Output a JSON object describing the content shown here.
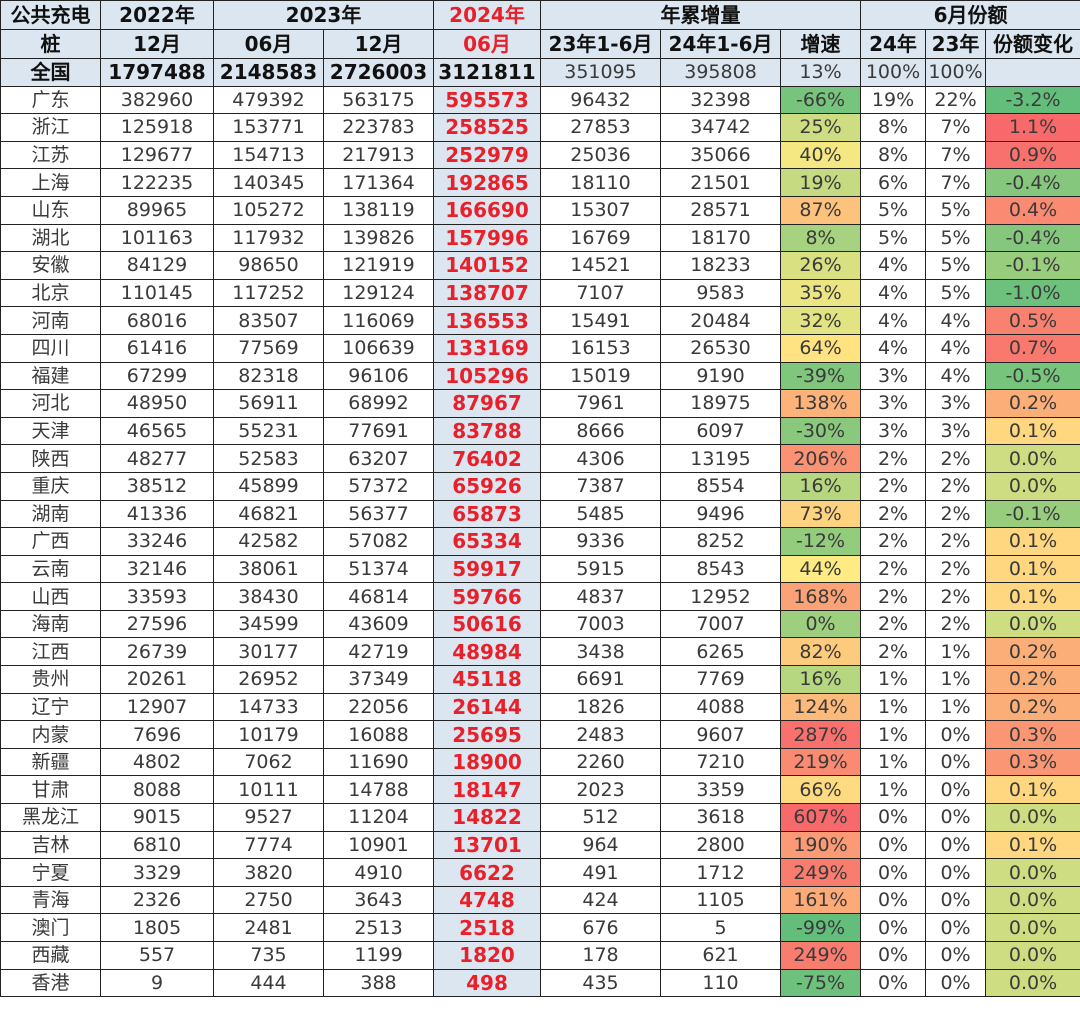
{
  "header": {
    "corner_line1": "公共充电",
    "corner_line2": "桩",
    "y2022": "2022年",
    "y2023": "2023年",
    "y2024": "2024年",
    "cumulative": "年累增量",
    "share": "6月份额",
    "m2022_12": "12月",
    "m2023_06": "06月",
    "m2023_12": "12月",
    "m2024_06": "06月",
    "cum23": "23年1-6月",
    "cum24": "24年1-6月",
    "growth": "增速",
    "share24": "24年",
    "share23": "23年",
    "share_change": "份额变化"
  },
  "national": [
    "全国",
    "1797488",
    "2148583",
    "2726003",
    "3121811",
    "351095",
    "395808",
    "13%",
    "100%",
    "100%",
    ""
  ],
  "colors": {
    "highlight_bg": "#dce6f1",
    "highlight_text": "#e8202a",
    "scale_low": "#63be7b",
    "scale_mid": "#ffeb84",
    "scale_high": "#f8696b"
  },
  "rows": [
    [
      "广东",
      "382960",
      "479392",
      "563175",
      "595573",
      "96432",
      "32398",
      "-66%",
      "19%",
      "22%",
      "-3.2%"
    ],
    [
      "浙江",
      "125918",
      "153771",
      "223783",
      "258525",
      "27853",
      "34742",
      "25%",
      "8%",
      "7%",
      "1.1%"
    ],
    [
      "江苏",
      "129677",
      "154713",
      "217913",
      "252979",
      "25036",
      "35066",
      "40%",
      "8%",
      "7%",
      "0.9%"
    ],
    [
      "上海",
      "122235",
      "140345",
      "171364",
      "192865",
      "18110",
      "21501",
      "19%",
      "6%",
      "7%",
      "-0.4%"
    ],
    [
      "山东",
      "89965",
      "105272",
      "138119",
      "166690",
      "15307",
      "28571",
      "87%",
      "5%",
      "5%",
      "0.4%"
    ],
    [
      "湖北",
      "101163",
      "117932",
      "139826",
      "157996",
      "16769",
      "18170",
      "8%",
      "5%",
      "5%",
      "-0.4%"
    ],
    [
      "安徽",
      "84129",
      "98650",
      "121919",
      "140152",
      "14521",
      "18233",
      "26%",
      "4%",
      "5%",
      "-0.1%"
    ],
    [
      "北京",
      "110145",
      "117252",
      "129124",
      "138707",
      "7107",
      "9583",
      "35%",
      "4%",
      "5%",
      "-1.0%"
    ],
    [
      "河南",
      "68016",
      "83507",
      "116069",
      "136553",
      "15491",
      "20484",
      "32%",
      "4%",
      "4%",
      "0.5%"
    ],
    [
      "四川",
      "61416",
      "77569",
      "106639",
      "133169",
      "16153",
      "26530",
      "64%",
      "4%",
      "4%",
      "0.7%"
    ],
    [
      "福建",
      "67299",
      "82318",
      "96106",
      "105296",
      "15019",
      "9190",
      "-39%",
      "3%",
      "4%",
      "-0.5%"
    ],
    [
      "河北",
      "48950",
      "56911",
      "68992",
      "87967",
      "7961",
      "18975",
      "138%",
      "3%",
      "3%",
      "0.2%"
    ],
    [
      "天津",
      "46565",
      "55231",
      "77691",
      "83788",
      "8666",
      "6097",
      "-30%",
      "3%",
      "3%",
      "0.1%"
    ],
    [
      "陕西",
      "48277",
      "52583",
      "63207",
      "76402",
      "4306",
      "13195",
      "206%",
      "2%",
      "2%",
      "0.0%"
    ],
    [
      "重庆",
      "38512",
      "45899",
      "57372",
      "65926",
      "7387",
      "8554",
      "16%",
      "2%",
      "2%",
      "0.0%"
    ],
    [
      "湖南",
      "41336",
      "46821",
      "56377",
      "65873",
      "5485",
      "9496",
      "73%",
      "2%",
      "2%",
      "-0.1%"
    ],
    [
      "广西",
      "33246",
      "42582",
      "57082",
      "65334",
      "9336",
      "8252",
      "-12%",
      "2%",
      "2%",
      "0.1%"
    ],
    [
      "云南",
      "32146",
      "38061",
      "51374",
      "59917",
      "5915",
      "8543",
      "44%",
      "2%",
      "2%",
      "0.1%"
    ],
    [
      "山西",
      "33593",
      "38430",
      "46814",
      "59766",
      "4837",
      "12952",
      "168%",
      "2%",
      "2%",
      "0.1%"
    ],
    [
      "海南",
      "27596",
      "34599",
      "43609",
      "50616",
      "7003",
      "7007",
      "0%",
      "2%",
      "2%",
      "0.0%"
    ],
    [
      "江西",
      "26739",
      "30177",
      "42719",
      "48984",
      "3438",
      "6265",
      "82%",
      "2%",
      "1%",
      "0.2%"
    ],
    [
      "贵州",
      "20261",
      "26952",
      "37349",
      "45118",
      "6691",
      "7769",
      "16%",
      "1%",
      "1%",
      "0.2%"
    ],
    [
      "辽宁",
      "12907",
      "14733",
      "22056",
      "26144",
      "1826",
      "4088",
      "124%",
      "1%",
      "1%",
      "0.2%"
    ],
    [
      "内蒙",
      "7696",
      "10179",
      "16088",
      "25695",
      "2483",
      "9607",
      "287%",
      "1%",
      "0%",
      "0.3%"
    ],
    [
      "新疆",
      "4802",
      "7062",
      "11690",
      "18900",
      "2260",
      "7210",
      "219%",
      "1%",
      "0%",
      "0.3%"
    ],
    [
      "甘肃",
      "8088",
      "10111",
      "14788",
      "18147",
      "2023",
      "3359",
      "66%",
      "1%",
      "0%",
      "0.1%"
    ],
    [
      "黑龙江",
      "9015",
      "9527",
      "11204",
      "14822",
      "512",
      "3618",
      "607%",
      "0%",
      "0%",
      "0.0%"
    ],
    [
      "吉林",
      "6810",
      "7774",
      "10901",
      "13701",
      "964",
      "2800",
      "190%",
      "0%",
      "0%",
      "0.1%"
    ],
    [
      "宁夏",
      "3329",
      "3820",
      "4910",
      "6622",
      "491",
      "1712",
      "249%",
      "0%",
      "0%",
      "0.0%"
    ],
    [
      "青海",
      "2326",
      "2750",
      "3643",
      "4748",
      "424",
      "1105",
      "161%",
      "0%",
      "0%",
      "0.0%"
    ],
    [
      "澳门",
      "1805",
      "2481",
      "2513",
      "2518",
      "676",
      "5",
      "-99%",
      "0%",
      "0%",
      "0.0%"
    ],
    [
      "西藏",
      "557",
      "735",
      "1199",
      "1820",
      "178",
      "621",
      "249%",
      "0%",
      "0%",
      "0.0%"
    ],
    [
      "香港",
      "9",
      "444",
      "388",
      "498",
      "435",
      "110",
      "-75%",
      "0%",
      "0%",
      "0.0%"
    ]
  ]
}
